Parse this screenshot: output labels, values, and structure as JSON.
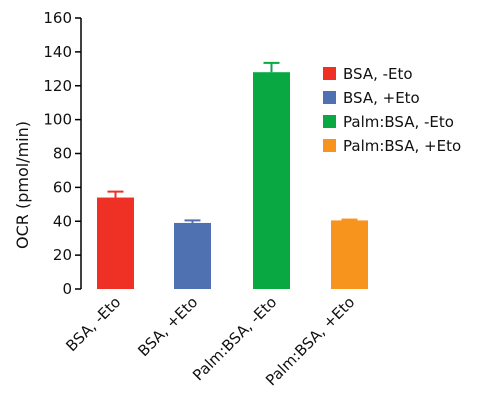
{
  "chart_data": {
    "type": "bar",
    "title": "",
    "xlabel": "",
    "ylabel": "OCR (pmol/min)",
    "ylim": [
      0,
      160
    ],
    "yticks": [
      0,
      20,
      40,
      60,
      80,
      100,
      120,
      140,
      160
    ],
    "grid": false,
    "legend_position": "right",
    "categories": [
      "BSA, -Eto",
      "BSA, +Eto",
      "Palm:BSA, -Eto",
      "Palm:BSA, +Eto"
    ],
    "values": [
      54,
      39,
      128,
      40.5
    ],
    "errors": [
      3.5,
      1.5,
      5.5,
      0.5
    ],
    "colors": [
      "#ee3124",
      "#4f71b2",
      "#0aa843",
      "#f7941d"
    ],
    "legend": [
      "BSA, -Eto",
      "BSA, +Eto",
      "Palm:BSA, -Eto",
      "Palm:BSA, +Eto"
    ]
  }
}
